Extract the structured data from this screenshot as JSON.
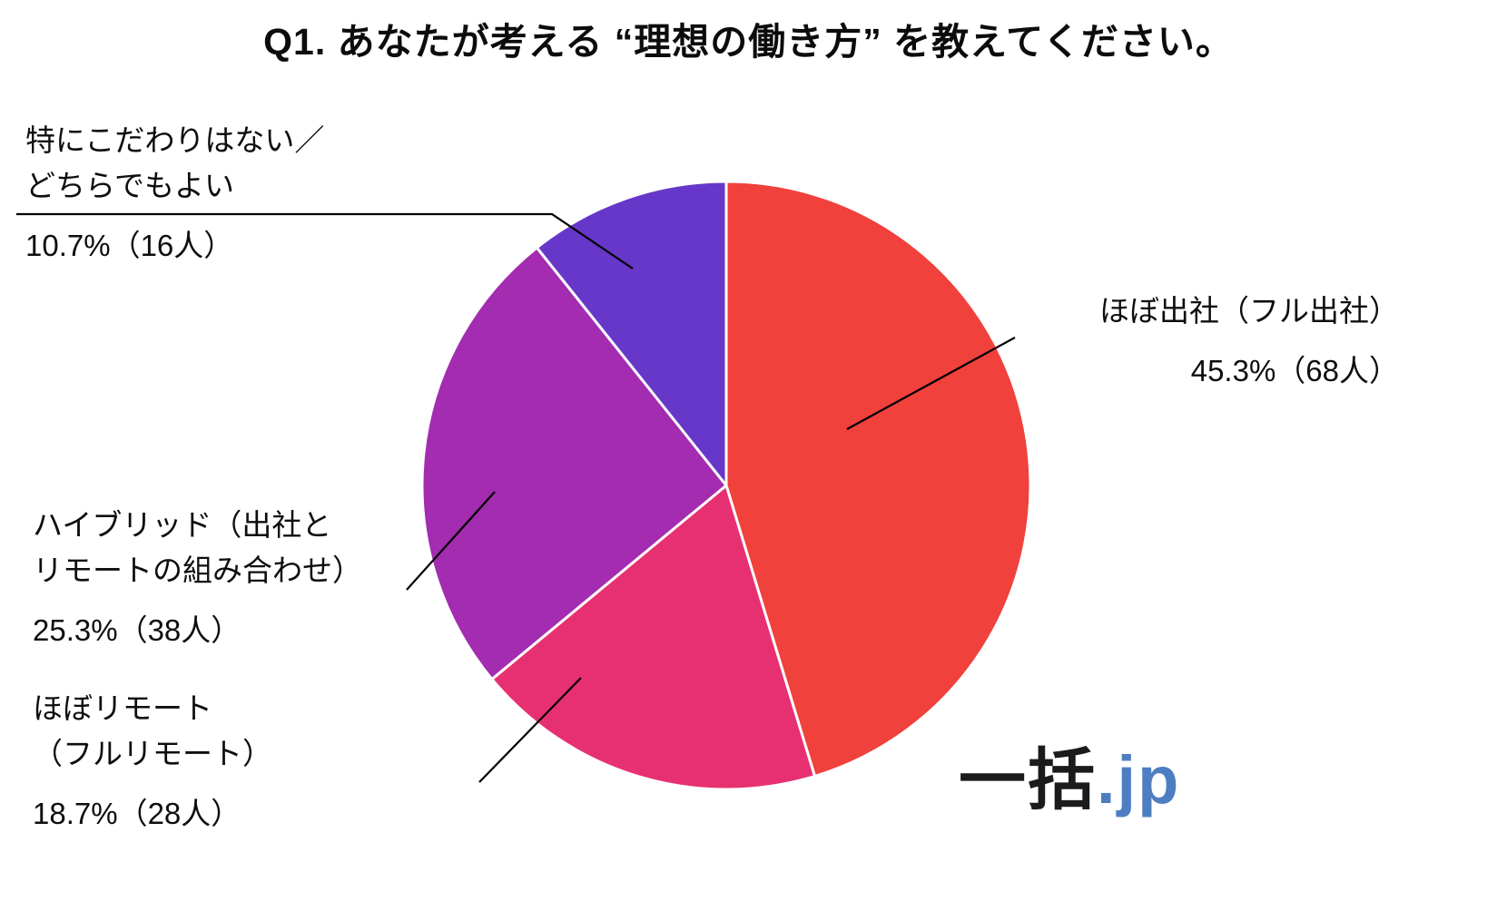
{
  "page": {
    "background": "#ffffff",
    "text_color": "#0e0e0e",
    "leader_line_color": "#000000"
  },
  "chart_data": {
    "type": "pie",
    "title": "Q1. あなたが考える “理想の働き方” を教えてください。",
    "start_angle_deg": 0,
    "direction": "clockwise",
    "legend_position": "none",
    "labels_style": "leader-lines",
    "slices": [
      {
        "name": "ほぼ出社（フル出社）",
        "label_lines": [
          "ほぼ出社（フル出社）"
        ],
        "value_pct": 45.3,
        "count": 68,
        "value_label": "45.3%（68人）",
        "color": "#F0413C"
      },
      {
        "name": "ほぼリモート（フルリモート）",
        "label_lines": [
          "ほぼリモート",
          "（フルリモート）"
        ],
        "value_pct": 18.7,
        "count": 28,
        "value_label": "18.7%（28人）",
        "color": "#E73071"
      },
      {
        "name": "ハイブリッド（出社とリモートの組み合わせ）",
        "label_lines": [
          "ハイブリッド（出社と",
          "リモートの組み合わせ）"
        ],
        "value_pct": 25.3,
        "count": 38,
        "value_label": "25.3%（38人）",
        "color": "#A32CB0"
      },
      {
        "name": "特にこだわりはない／どちらでもよい",
        "label_lines": [
          "特にこだわりはない／",
          "どちらでもよい"
        ],
        "value_pct": 10.7,
        "count": 16,
        "value_label": "10.7%（16人）",
        "color": "#6637C8"
      }
    ]
  },
  "logo": {
    "text_black": "一括",
    "text_blue": ".jp",
    "blue_color": "#4D7EC2"
  }
}
